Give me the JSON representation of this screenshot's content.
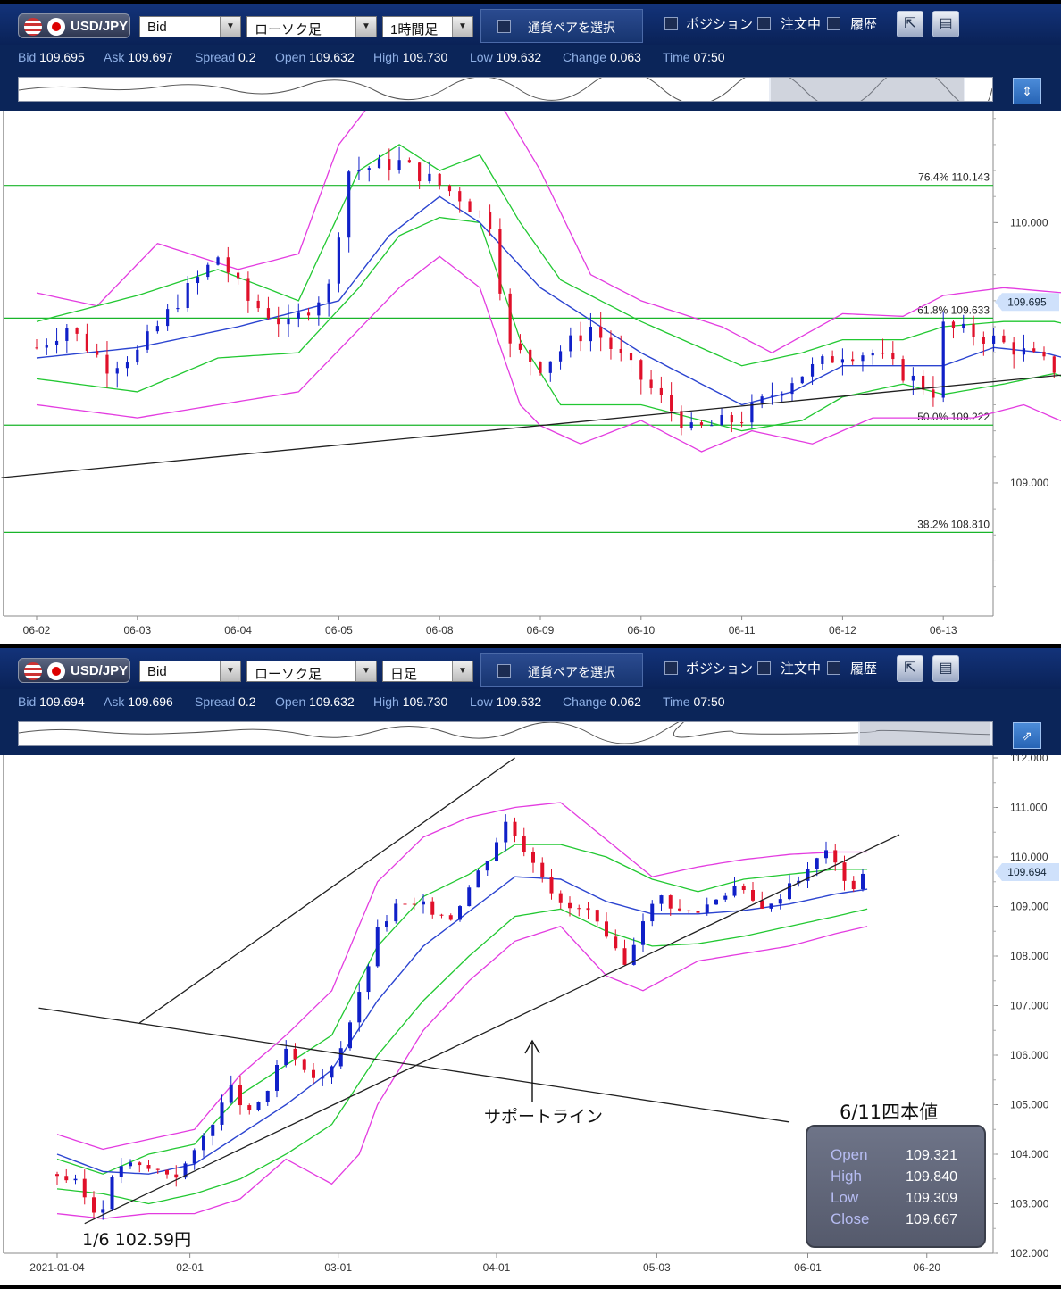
{
  "top": {
    "toolbar": {
      "pair": "USD/JPY",
      "price_type": "Bid",
      "chart_type": "ローソク足",
      "timeframe": "1時間足",
      "pair_select": "通貨ペアを選択",
      "chk_position": "ポジション",
      "chk_orders": "注文中",
      "chk_history": "履歴"
    },
    "info": {
      "bid_k": "Bid",
      "bid": "109.695",
      "ask_k": "Ask",
      "ask": "109.697",
      "spread_k": "Spread",
      "spread": "0.2",
      "open_k": "Open",
      "open": "109.632",
      "high_k": "High",
      "high": "109.730",
      "low_k": "Low",
      "low": "109.632",
      "change_k": "Change",
      "change": "0.063",
      "time_k": "Time",
      "time": "07:50"
    },
    "colors": {
      "up": "#1020c8",
      "down": "#e0102a",
      "ma": "#2b44d0",
      "bb1": "#22c832",
      "bb2": "#e33ce0",
      "level": "#19b52a",
      "trend": "#202020"
    },
    "chart_data": {
      "type": "candlestick",
      "instrument": "USD/JPY",
      "timeframe": "1時間足",
      "x_ticks": [
        "06-02",
        "06-03",
        "06-04",
        "06-05",
        "06-08",
        "06-09",
        "06-10",
        "06-11",
        "06-12",
        "06-13"
      ],
      "y_ticks": [
        "109.000",
        "110.000"
      ],
      "ylim": [
        108.53,
        110.43
      ],
      "current_price": "109.695",
      "fib_levels": [
        {
          "label": "76.4%",
          "value": "110.143"
        },
        {
          "label": "61.8%",
          "value": "109.633"
        },
        {
          "label": "50.0%",
          "value": "109.222"
        },
        {
          "label": "38.2%",
          "value": "108.810"
        }
      ],
      "close_path": [
        [
          0,
          109.52
        ],
        [
          0.3,
          109.6
        ],
        [
          0.7,
          109.45
        ],
        [
          1,
          109.5
        ],
        [
          1.4,
          109.7
        ],
        [
          1.8,
          109.87
        ],
        [
          2.1,
          109.7
        ],
        [
          2.5,
          109.6
        ],
        [
          2.9,
          109.75
        ],
        [
          3.1,
          110.2
        ],
        [
          3.6,
          110.23
        ],
        [
          4.2,
          110.1
        ],
        [
          4.5,
          110.0
        ],
        [
          4.7,
          109.52
        ],
        [
          5.0,
          109.45
        ],
        [
          5.5,
          109.6
        ],
        [
          6.0,
          109.4
        ],
        [
          6.5,
          109.2
        ],
        [
          7.0,
          109.25
        ],
        [
          7.5,
          109.4
        ],
        [
          8.0,
          109.5
        ],
        [
          8.3,
          109.5
        ],
        [
          8.6,
          109.42
        ],
        [
          8.9,
          109.35
        ],
        [
          9.0,
          109.6
        ],
        [
          9.5,
          109.55
        ],
        [
          9.8,
          109.5
        ],
        [
          10.2,
          109.42
        ],
        [
          10.6,
          109.44
        ],
        [
          11.0,
          109.3
        ],
        [
          11.3,
          109.4
        ],
        [
          11.6,
          109.42
        ],
        [
          11.9,
          109.75
        ],
        [
          12.1,
          109.7
        ],
        [
          12.25,
          109.68
        ]
      ],
      "ma_path": [
        [
          0,
          109.48
        ],
        [
          1,
          109.52
        ],
        [
          2,
          109.6
        ],
        [
          3,
          109.7
        ],
        [
          3.5,
          109.95
        ],
        [
          4,
          110.1
        ],
        [
          4.4,
          110.0
        ],
        [
          5,
          109.75
        ],
        [
          6,
          109.5
        ],
        [
          7,
          109.3
        ],
        [
          7.5,
          109.35
        ],
        [
          8,
          109.45
        ],
        [
          8.5,
          109.45
        ],
        [
          9,
          109.45
        ],
        [
          9.5,
          109.52
        ],
        [
          10,
          109.5
        ],
        [
          10.5,
          109.45
        ],
        [
          11,
          109.4
        ],
        [
          11.3,
          109.42
        ],
        [
          11.7,
          109.46
        ],
        [
          12.0,
          109.55
        ],
        [
          12.25,
          109.61
        ]
      ],
      "bb1_upper_path": [
        [
          0,
          109.62
        ],
        [
          1,
          109.72
        ],
        [
          1.8,
          109.82
        ],
        [
          2.6,
          109.7
        ],
        [
          3.2,
          110.2
        ],
        [
          3.6,
          110.3
        ],
        [
          4,
          110.2
        ],
        [
          4.4,
          110.26
        ],
        [
          4.8,
          110.0
        ],
        [
          5.2,
          109.78
        ],
        [
          6,
          109.62
        ],
        [
          7,
          109.45
        ],
        [
          7.6,
          109.5
        ],
        [
          8,
          109.55
        ],
        [
          8.6,
          109.55
        ],
        [
          9.0,
          109.6
        ],
        [
          9.6,
          109.62
        ],
        [
          10.1,
          109.62
        ],
        [
          10.8,
          109.56
        ],
        [
          11.4,
          109.5
        ],
        [
          11.8,
          109.62
        ],
        [
          12.25,
          109.76
        ]
      ],
      "bb1_lower_path": [
        [
          0,
          109.4
        ],
        [
          1,
          109.35
        ],
        [
          1.8,
          109.48
        ],
        [
          2.6,
          109.5
        ],
        [
          3.2,
          109.75
        ],
        [
          3.6,
          109.95
        ],
        [
          4,
          110.02
        ],
        [
          4.4,
          110.0
        ],
        [
          4.8,
          109.55
        ],
        [
          5.2,
          109.3
        ],
        [
          6,
          109.3
        ],
        [
          7,
          109.2
        ],
        [
          7.6,
          109.24
        ],
        [
          8,
          109.33
        ],
        [
          8.6,
          109.38
        ],
        [
          9.0,
          109.34
        ],
        [
          9.6,
          109.38
        ],
        [
          10.1,
          109.42
        ],
        [
          10.8,
          109.33
        ],
        [
          11.4,
          109.3
        ],
        [
          11.8,
          109.3
        ],
        [
          12.25,
          109.44
        ]
      ],
      "bb2_upper_path": [
        [
          0,
          109.73
        ],
        [
          0.6,
          109.68
        ],
        [
          1.2,
          109.92
        ],
        [
          2.0,
          109.82
        ],
        [
          2.6,
          109.88
        ],
        [
          3.0,
          110.3
        ],
        [
          3.6,
          110.6
        ],
        [
          4.2,
          110.5
        ],
        [
          4.6,
          110.46
        ],
        [
          5.0,
          110.2
        ],
        [
          5.5,
          109.8
        ],
        [
          6.0,
          109.7
        ],
        [
          6.8,
          109.6
        ],
        [
          7.3,
          109.5
        ],
        [
          8,
          109.65
        ],
        [
          8.6,
          109.64
        ],
        [
          9.0,
          109.72
        ],
        [
          9.6,
          109.75
        ],
        [
          10.2,
          109.73
        ],
        [
          10.8,
          109.7
        ],
        [
          11.4,
          109.66
        ],
        [
          11.8,
          109.8
        ],
        [
          12.25,
          109.87
        ]
      ],
      "bb2_lower_path": [
        [
          0,
          109.3
        ],
        [
          1,
          109.25
        ],
        [
          1.8,
          109.3
        ],
        [
          2.6,
          109.35
        ],
        [
          3.1,
          109.55
        ],
        [
          3.6,
          109.75
        ],
        [
          4,
          109.87
        ],
        [
          4.4,
          109.75
        ],
        [
          4.8,
          109.3
        ],
        [
          5.0,
          109.22
        ],
        [
          5.4,
          109.15
        ],
        [
          6,
          109.24
        ],
        [
          6.6,
          109.12
        ],
        [
          7.1,
          109.2
        ],
        [
          7.7,
          109.15
        ],
        [
          8.3,
          109.25
        ],
        [
          8.8,
          109.25
        ],
        [
          9.3,
          109.25
        ],
        [
          9.8,
          109.3
        ],
        [
          10.4,
          109.2
        ],
        [
          10.9,
          109.23
        ],
        [
          11.3,
          109.25
        ],
        [
          11.7,
          109.2
        ],
        [
          12.25,
          109.27
        ]
      ],
      "trendline": [
        [
          -0.35,
          109.02
        ],
        [
          13.0,
          109.52
        ]
      ]
    }
  },
  "bottom": {
    "toolbar": {
      "pair": "USD/JPY",
      "price_type": "Bid",
      "chart_type": "ローソク足",
      "timeframe": "日足",
      "pair_select": "通貨ペアを選択",
      "chk_position": "ポジション",
      "chk_orders": "注文中",
      "chk_history": "履歴"
    },
    "info": {
      "bid_k": "Bid",
      "bid": "109.694",
      "ask_k": "Ask",
      "ask": "109.696",
      "spread_k": "Spread",
      "spread": "0.2",
      "open_k": "Open",
      "open": "109.632",
      "high_k": "High",
      "high": "109.730",
      "low_k": "Low",
      "low": "109.632",
      "change_k": "Change",
      "change": "0.062",
      "time_k": "Time",
      "time": "07:50"
    },
    "chart_data": {
      "type": "candlestick",
      "instrument": "USD/JPY",
      "timeframe": "日足",
      "x_ticks": [
        "2021-01-04",
        "02-01",
        "03-01",
        "04-01",
        "05-03",
        "06-01",
        "06-20"
      ],
      "y_ticks": [
        "102.000",
        "103.000",
        "104.000",
        "105.000",
        "106.000",
        "107.000",
        "108.000",
        "109.000",
        "110.000",
        "111.000",
        "112.000"
      ],
      "ylim": [
        102.0,
        112.0
      ],
      "current_price": "109.694",
      "close_path": [
        [
          0,
          103.6
        ],
        [
          0.2,
          103.4
        ],
        [
          0.35,
          103.0
        ],
        [
          0.45,
          102.7
        ],
        [
          0.55,
          103.3
        ],
        [
          0.7,
          103.8
        ],
        [
          1,
          103.7
        ],
        [
          1.3,
          103.6
        ],
        [
          1.5,
          104.0
        ],
        [
          1.7,
          104.7
        ],
        [
          1.9,
          105.3
        ],
        [
          2.1,
          104.8
        ],
        [
          2.3,
          105.3
        ],
        [
          2.5,
          106.1
        ],
        [
          2.7,
          105.6
        ],
        [
          2.9,
          105.5
        ],
        [
          3.1,
          106.2
        ],
        [
          3.3,
          107.2
        ],
        [
          3.5,
          108.5
        ],
        [
          3.7,
          109.0
        ],
        [
          4.0,
          109.0
        ],
        [
          4.3,
          108.8
        ],
        [
          4.5,
          109.4
        ],
        [
          4.7,
          110.0
        ],
        [
          4.9,
          110.7
        ],
        [
          5.1,
          110.2
        ],
        [
          5.3,
          109.7
        ],
        [
          5.5,
          109.0
        ],
        [
          5.8,
          108.9
        ],
        [
          6.0,
          108.3
        ],
        [
          6.2,
          107.8
        ],
        [
          6.4,
          108.8
        ],
        [
          6.6,
          109.2
        ],
        [
          6.8,
          108.9
        ],
        [
          7.0,
          108.9
        ],
        [
          7.2,
          109.2
        ],
        [
          7.4,
          109.4
        ],
        [
          7.6,
          109.1
        ],
        [
          7.8,
          109.0
        ],
        [
          8.0,
          109.5
        ],
        [
          8.2,
          109.7
        ],
        [
          8.4,
          110.2
        ],
        [
          8.5,
          109.8
        ],
        [
          8.7,
          109.4
        ],
        [
          8.85,
          109.69
        ]
      ],
      "ma_path": [
        [
          0,
          104.0
        ],
        [
          0.5,
          103.65
        ],
        [
          1,
          103.6
        ],
        [
          1.5,
          103.8
        ],
        [
          2,
          104.4
        ],
        [
          2.5,
          105.0
        ],
        [
          3,
          105.7
        ],
        [
          3.5,
          107.1
        ],
        [
          4,
          108.2
        ],
        [
          4.5,
          108.9
        ],
        [
          5,
          109.6
        ],
        [
          5.5,
          109.55
        ],
        [
          6,
          109.1
        ],
        [
          6.5,
          108.85
        ],
        [
          7,
          108.85
        ],
        [
          7.5,
          108.92
        ],
        [
          8,
          109.05
        ],
        [
          8.5,
          109.25
        ],
        [
          8.85,
          109.35
        ]
      ],
      "bb1_upper_path": [
        [
          0,
          103.9
        ],
        [
          0.5,
          103.6
        ],
        [
          1,
          104.0
        ],
        [
          1.5,
          104.2
        ],
        [
          2,
          105.2
        ],
        [
          2.5,
          105.8
        ],
        [
          3,
          106.4
        ],
        [
          3.5,
          108.2
        ],
        [
          4,
          109.2
        ],
        [
          4.5,
          109.65
        ],
        [
          5,
          110.25
        ],
        [
          5.5,
          110.25
        ],
        [
          6,
          110.0
        ],
        [
          6.5,
          109.55
        ],
        [
          7,
          109.3
        ],
        [
          7.5,
          109.55
        ],
        [
          8,
          109.65
        ],
        [
          8.5,
          109.75
        ],
        [
          8.85,
          109.75
        ]
      ],
      "bb1_lower_path": [
        [
          0,
          103.3
        ],
        [
          0.5,
          103.2
        ],
        [
          1,
          103.0
        ],
        [
          1.5,
          103.2
        ],
        [
          2,
          103.5
        ],
        [
          2.5,
          104.0
        ],
        [
          3,
          104.6
        ],
        [
          3.5,
          106.0
        ],
        [
          4,
          107.1
        ],
        [
          4.5,
          108.0
        ],
        [
          5,
          108.8
        ],
        [
          5.5,
          108.95
        ],
        [
          6,
          108.5
        ],
        [
          6.5,
          108.2
        ],
        [
          7,
          108.25
        ],
        [
          7.5,
          108.4
        ],
        [
          8,
          108.6
        ],
        [
          8.5,
          108.8
        ],
        [
          8.85,
          108.95
        ]
      ],
      "bb2_upper_path": [
        [
          0,
          104.4
        ],
        [
          0.5,
          104.1
        ],
        [
          1,
          104.3
        ],
        [
          1.5,
          104.5
        ],
        [
          2,
          105.6
        ],
        [
          2.5,
          106.4
        ],
        [
          3,
          107.3
        ],
        [
          3.5,
          109.5
        ],
        [
          4,
          110.4
        ],
        [
          4.5,
          110.8
        ],
        [
          5,
          111.0
        ],
        [
          5.5,
          111.1
        ],
        [
          5.9,
          110.5
        ],
        [
          6.5,
          109.6
        ],
        [
          7,
          109.8
        ],
        [
          7.5,
          109.95
        ],
        [
          8,
          110.05
        ],
        [
          8.5,
          110.1
        ],
        [
          8.85,
          110.1
        ]
      ],
      "bb2_lower_path": [
        [
          0,
          102.8
        ],
        [
          0.5,
          102.7
        ],
        [
          1,
          102.8
        ],
        [
          1.5,
          102.8
        ],
        [
          2,
          103.1
        ],
        [
          2.5,
          103.9
        ],
        [
          3,
          103.4
        ],
        [
          3.3,
          104.0
        ],
        [
          3.5,
          105.0
        ],
        [
          4,
          106.5
        ],
        [
          4.5,
          107.5
        ],
        [
          5,
          108.3
        ],
        [
          5.5,
          108.6
        ],
        [
          6,
          107.6
        ],
        [
          6.4,
          107.3
        ],
        [
          7,
          107.9
        ],
        [
          7.5,
          108.05
        ],
        [
          8,
          108.2
        ],
        [
          8.5,
          108.45
        ],
        [
          8.85,
          108.6
        ]
      ],
      "channel_upper": [
        [
          0.9,
          106.65
        ],
        [
          5.0,
          112.0
        ]
      ],
      "channel_lower": [
        [
          0.3,
          102.6
        ],
        [
          9.2,
          110.45
        ]
      ],
      "falling_line": [
        [
          -0.2,
          106.95
        ],
        [
          8.0,
          104.65
        ]
      ],
      "support_label": "サポートライン",
      "low_label": "1/6  102.59円",
      "ohlc_title": "6/11四本値",
      "ohlc": [
        {
          "k": "Open",
          "v": "109.321"
        },
        {
          "k": "High",
          "v": "109.840"
        },
        {
          "k": "Low",
          "v": "109.309"
        },
        {
          "k": "Close",
          "v": "109.667"
        }
      ]
    }
  }
}
